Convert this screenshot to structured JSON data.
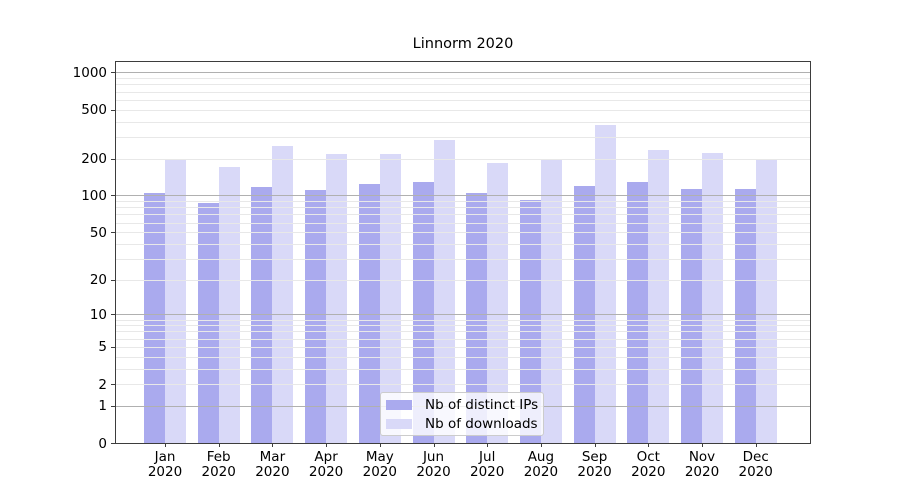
{
  "chart_data": {
    "type": "bar",
    "title": "Linnorm 2020",
    "categories": [
      "Jan 2020",
      "Feb 2020",
      "Mar 2020",
      "Apr 2020",
      "May 2020",
      "Jun 2020",
      "Jul 2020",
      "Aug 2020",
      "Sep 2020",
      "Oct 2020",
      "Nov 2020",
      "Dec 2020"
    ],
    "series": [
      {
        "name": "Nb of distinct IPs",
        "color": "#aaaaee",
        "values": [
          105,
          88,
          119,
          112,
          125,
          130,
          106,
          93,
          121,
          131,
          115,
          115
        ]
      },
      {
        "name": "Nb of downloads",
        "color": "#d9d9f8",
        "values": [
          200,
          173,
          257,
          219,
          220,
          285,
          185,
          195,
          375,
          237,
          224,
          200
        ]
      }
    ],
    "yticks": [
      0,
      1,
      2,
      5,
      10,
      20,
      50,
      100,
      200,
      500,
      1000
    ],
    "y_scale": "log10(1+v)",
    "ylim": [
      0,
      1250
    ],
    "grid": "on",
    "legend_position": "lower-center",
    "colors": {
      "major_grid": "#b0b0b0",
      "minor_grid": "#e8e8e8",
      "spine": "#3d3d3d",
      "text": "#000000"
    }
  }
}
